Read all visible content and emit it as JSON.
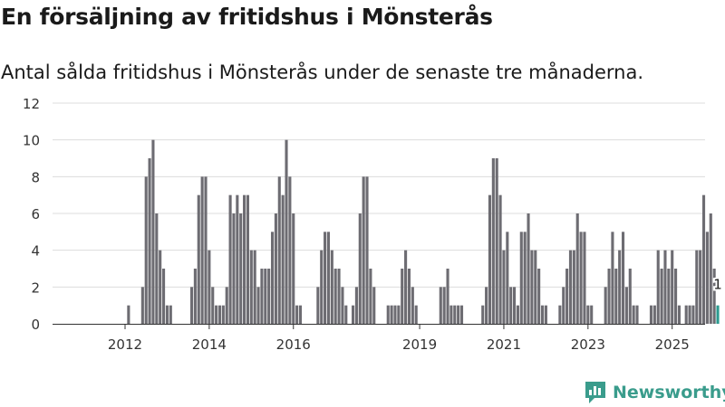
{
  "header": {
    "title": "En försäljning av fritidshus i Mönsterås",
    "subtitle": "Antal sålda fritidshus i Mönsterås under de senaste tre månaderna."
  },
  "brand": {
    "name": "Newsworthy",
    "icon": "newsworthy-logo-icon",
    "color": "#3a9c8c"
  },
  "colors": {
    "bar": "#6d6c72",
    "highlight": "#2c9b90",
    "grid": "#dcdcdc",
    "axis": "#333333"
  },
  "chart_data": {
    "type": "bar",
    "x_start": "2011-01",
    "frequency": "month",
    "x_ticks": [
      "2012",
      "2014",
      "2016",
      "2019",
      "2021",
      "2023",
      "2025"
    ],
    "y_ticks": [
      0,
      2,
      4,
      6,
      8,
      10,
      12
    ],
    "ylim": [
      0,
      12
    ],
    "grid": true,
    "values": [
      0,
      0,
      0,
      0,
      0,
      0,
      0,
      0,
      0,
      0,
      0,
      0,
      0,
      1,
      0,
      0,
      0,
      2,
      8,
      9,
      10,
      6,
      4,
      3,
      1,
      1,
      0,
      0,
      0,
      0,
      0,
      2,
      3,
      7,
      8,
      8,
      4,
      2,
      1,
      1,
      1,
      2,
      7,
      6,
      7,
      6,
      7,
      7,
      4,
      4,
      2,
      3,
      3,
      3,
      5,
      6,
      8,
      7,
      10,
      8,
      6,
      1,
      1,
      0,
      0,
      0,
      0,
      2,
      4,
      5,
      5,
      4,
      3,
      3,
      2,
      1,
      0,
      1,
      2,
      6,
      8,
      8,
      3,
      2,
      0,
      0,
      0,
      1,
      1,
      1,
      1,
      3,
      4,
      3,
      2,
      1,
      0,
      0,
      0,
      0,
      0,
      0,
      2,
      2,
      3,
      1,
      1,
      1,
      1,
      0,
      0,
      0,
      0,
      0,
      1,
      2,
      7,
      9,
      9,
      7,
      4,
      5,
      2,
      2,
      1,
      5,
      5,
      6,
      4,
      4,
      3,
      1,
      1,
      0,
      0,
      0,
      1,
      2,
      3,
      4,
      4,
      6,
      5,
      5,
      1,
      1,
      0,
      0,
      0,
      2,
      3,
      5,
      3,
      4,
      5,
      2,
      3,
      1,
      1,
      0,
      0,
      0,
      1,
      1,
      4,
      3,
      4,
      3,
      4,
      3,
      1,
      0,
      1,
      1,
      1,
      4,
      4,
      7,
      5,
      6,
      3,
      1
    ],
    "highlight_last": true,
    "last_label": "1"
  }
}
